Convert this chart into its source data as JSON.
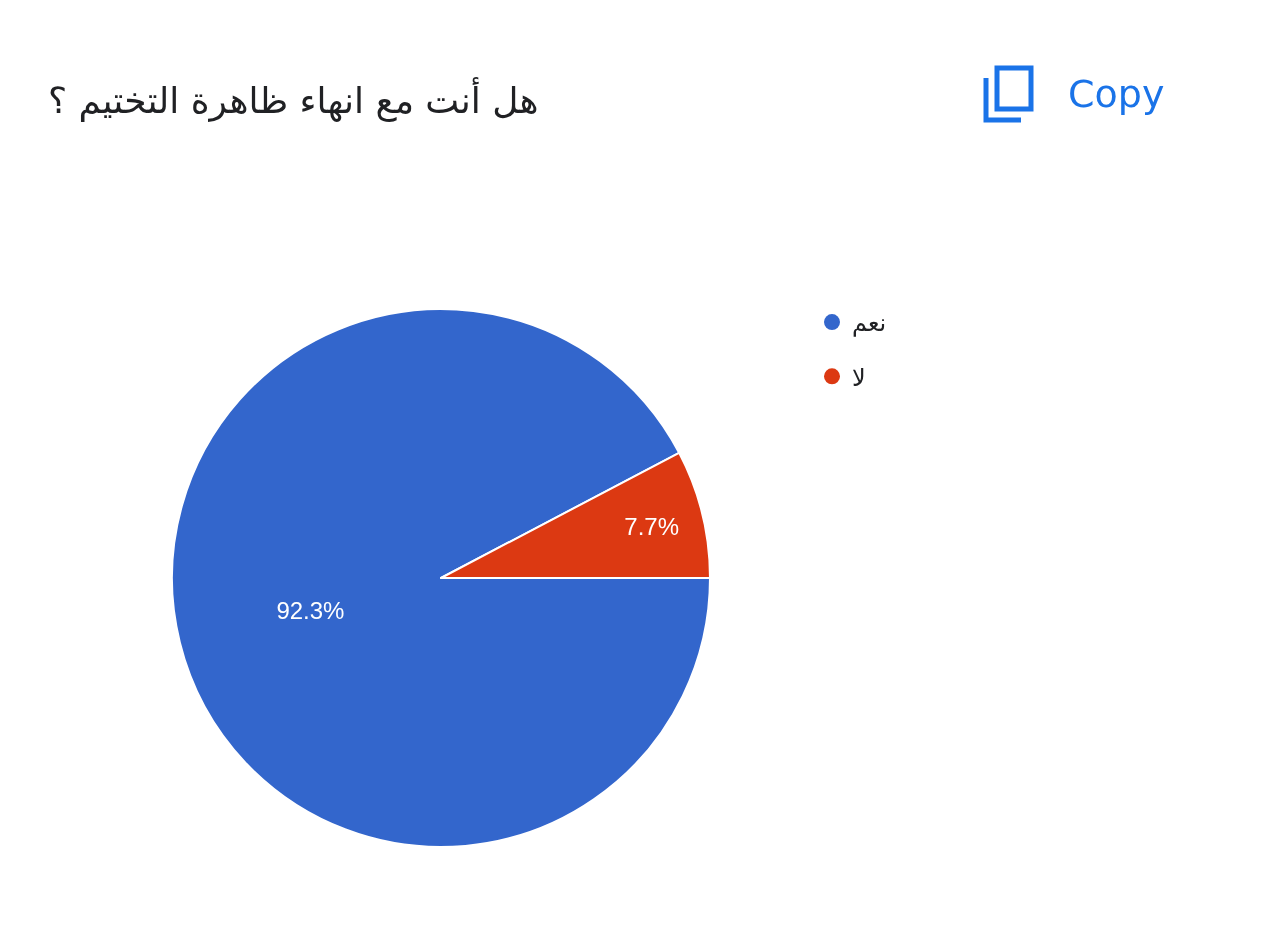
{
  "chart_data": {
    "type": "pie",
    "title": "هل أنت مع انهاء ظاهرة التختيم ؟",
    "categories": [
      "نعم",
      "لا"
    ],
    "values": [
      92.3,
      7.7
    ],
    "colors": [
      "#3366cc",
      "#dc3912"
    ],
    "value_labels": [
      "92.3%",
      "7.7%"
    ],
    "legend": "right",
    "annotations": [
      "Copy"
    ]
  }
}
